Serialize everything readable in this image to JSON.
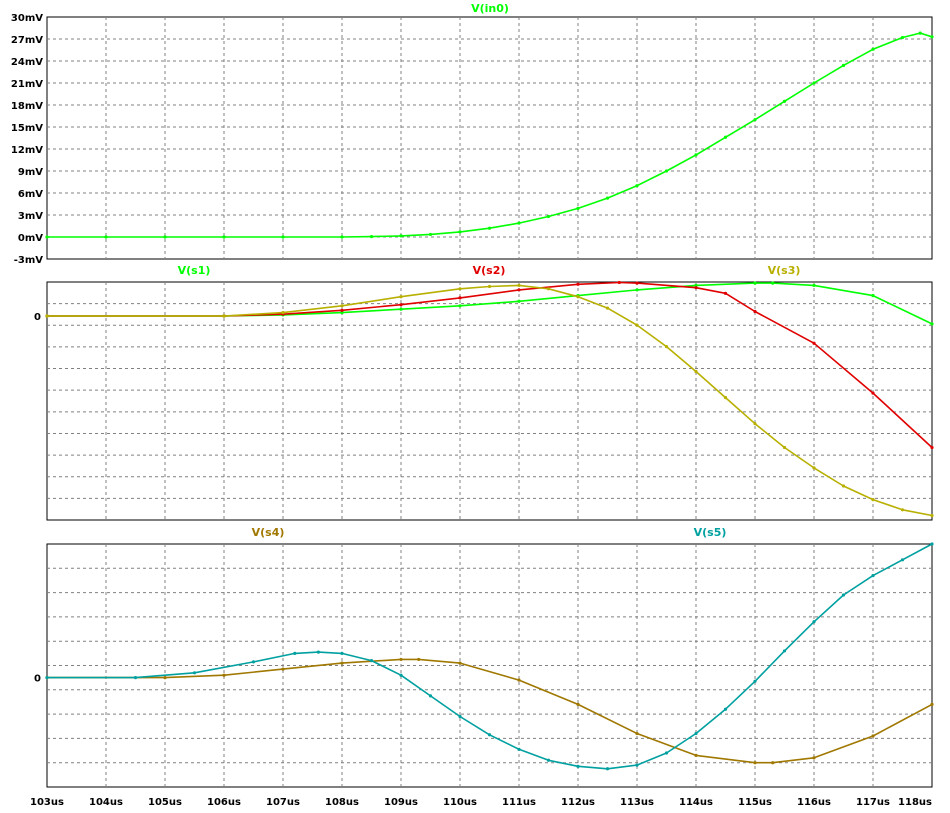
{
  "x_axis": {
    "ticks": [
      "103us",
      "104us",
      "105us",
      "106us",
      "107us",
      "108us",
      "109us",
      "110us",
      "111us",
      "112us",
      "113us",
      "114us",
      "115us",
      "116us",
      "117us",
      "118us"
    ],
    "range": [
      103,
      118
    ],
    "unit": "us"
  },
  "colors": {
    "green": "#00ff00",
    "red": "#e00000",
    "olive": "#b8b000",
    "brown": "#a07800",
    "cyan": "#00a0a0",
    "grid": "#808080",
    "axis": "#000000"
  },
  "chart_data": [
    {
      "type": "line",
      "xlabel": "",
      "ylabel": "",
      "ylim": [
        -3,
        30
      ],
      "yticks": [
        "30mV",
        "27mV",
        "24mV",
        "21mV",
        "18mV",
        "15mV",
        "12mV",
        "9mV",
        "6mV",
        "3mV",
        "0mV",
        "-3mV"
      ],
      "grid": true,
      "series": [
        {
          "name": "V(in0)",
          "color": "#00ff00",
          "x": [
            103,
            104,
            105,
            106,
            107,
            108,
            108.5,
            109,
            109.5,
            110,
            110.5,
            111,
            111.5,
            112,
            112.5,
            113,
            113.5,
            114,
            114.5,
            115,
            115.5,
            116,
            116.5,
            117,
            117.5,
            117.8,
            118
          ],
          "y": [
            0,
            0,
            0,
            0,
            0,
            0,
            0.05,
            0.15,
            0.35,
            0.7,
            1.2,
            1.9,
            2.8,
            3.9,
            5.3,
            7.0,
            9.0,
            11.2,
            13.6,
            16.0,
            18.5,
            21.0,
            23.4,
            25.6,
            27.2,
            27.8,
            27.3
          ]
        }
      ]
    },
    {
      "type": "line",
      "xlabel": "",
      "ylabel": "",
      "ylim": [
        -9,
        1.5
      ],
      "yticks": [
        "0"
      ],
      "grid": true,
      "series": [
        {
          "name": "V(s1)",
          "color": "#00ff00",
          "x": [
            103,
            106,
            107,
            108,
            109,
            110,
            111,
            112,
            113,
            114,
            115,
            115.3,
            116,
            117,
            118
          ],
          "y": [
            0,
            0,
            0.05,
            0.15,
            0.3,
            0.45,
            0.65,
            0.9,
            1.15,
            1.35,
            1.45,
            1.45,
            1.35,
            0.9,
            -0.35
          ]
        },
        {
          "name": "V(s2)",
          "color": "#e00000",
          "x": [
            103,
            106,
            107,
            108,
            109,
            110,
            111,
            112,
            112.7,
            113,
            114,
            114.5,
            115,
            116,
            117,
            118
          ],
          "y": [
            0,
            0,
            0.08,
            0.25,
            0.5,
            0.8,
            1.15,
            1.4,
            1.48,
            1.45,
            1.25,
            1.0,
            0.2,
            -1.2,
            -3.4,
            -5.8
          ]
        },
        {
          "name": "V(s3)",
          "color": "#b8b000",
          "x": [
            103,
            106,
            107,
            108,
            109,
            110,
            110.5,
            111,
            111.5,
            112,
            112.5,
            113,
            113.5,
            114,
            114.5,
            115,
            115.5,
            116,
            116.5,
            117,
            117.5,
            118
          ],
          "y": [
            0,
            0,
            0.15,
            0.45,
            0.85,
            1.2,
            1.3,
            1.35,
            1.2,
            0.85,
            0.35,
            -0.4,
            -1.35,
            -2.45,
            -3.6,
            -4.75,
            -5.8,
            -6.7,
            -7.5,
            -8.1,
            -8.55,
            -8.8
          ]
        }
      ]
    },
    {
      "type": "line",
      "xlabel": "",
      "ylabel": "",
      "ylim": [
        -4.5,
        5.5
      ],
      "yticks": [
        "0"
      ],
      "grid": true,
      "series": [
        {
          "name": "V(s4)",
          "color": "#a07800",
          "x": [
            103,
            105,
            106,
            107,
            108,
            109,
            109.3,
            110,
            111,
            112,
            113,
            114,
            115,
            115.3,
            116,
            117,
            118
          ],
          "y": [
            0,
            0,
            0.1,
            0.35,
            0.6,
            0.75,
            0.75,
            0.6,
            -0.1,
            -1.1,
            -2.3,
            -3.2,
            -3.5,
            -3.5,
            -3.3,
            -2.4,
            -1.1
          ]
        },
        {
          "name": "V(s5)",
          "color": "#00a0a0",
          "x": [
            103,
            104.5,
            105.5,
            106.5,
            107.2,
            107.6,
            108,
            108.5,
            109,
            109.5,
            110,
            110.5,
            111,
            111.5,
            112,
            112.5,
            113,
            113.5,
            114,
            114.5,
            115,
            115.5,
            116,
            116.5,
            117,
            117.5,
            118
          ],
          "y": [
            0,
            0,
            0.2,
            0.65,
            1.0,
            1.05,
            1.0,
            0.7,
            0.1,
            -0.75,
            -1.6,
            -2.35,
            -2.95,
            -3.4,
            -3.65,
            -3.75,
            -3.6,
            -3.1,
            -2.3,
            -1.3,
            -0.15,
            1.1,
            2.3,
            3.4,
            4.2,
            4.85,
            5.5
          ]
        }
      ]
    }
  ]
}
